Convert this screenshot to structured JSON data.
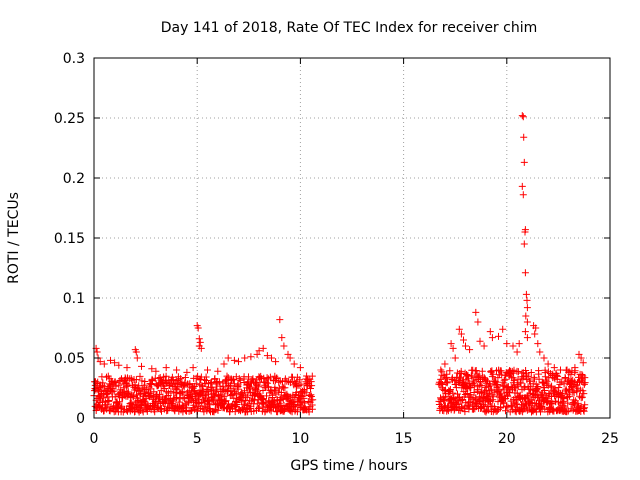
{
  "chart_data": {
    "type": "scatter",
    "title": "Day 141 of 2018, Rate Of TEC Index for receiver chim",
    "xlabel": "GPS time / hours",
    "ylabel": "ROTI / TECUs",
    "xlim": [
      0,
      25
    ],
    "ylim": [
      0,
      0.3
    ],
    "grid": true,
    "marker": "+",
    "series_color": "#ff0000",
    "xticks": [
      0,
      5,
      10,
      15,
      20,
      25
    ],
    "xtick_labels": [
      "0",
      "5",
      "10",
      "15",
      "20",
      "25"
    ],
    "yticks": [
      0,
      0.05,
      0.1,
      0.15,
      0.2,
      0.25,
      0.3
    ],
    "ytick_labels": [
      "0",
      "0.05",
      "0.1",
      "0.15",
      "0.2",
      "0.25",
      "0.3"
    ],
    "series": [
      {
        "name": "ROTI",
        "dense_segments": [
          {
            "x_start": 0.0,
            "x_end": 10.6,
            "y_base_min": 0.005,
            "y_base_max": 0.035,
            "count": 900
          },
          {
            "x_start": 16.7,
            "x_end": 23.8,
            "y_base_min": 0.005,
            "y_base_max": 0.04,
            "count": 650
          }
        ],
        "points": [
          [
            0.1,
            0.058
          ],
          [
            0.15,
            0.055
          ],
          [
            0.2,
            0.05
          ],
          [
            0.3,
            0.047
          ],
          [
            0.5,
            0.045
          ],
          [
            0.8,
            0.048
          ],
          [
            1.0,
            0.046
          ],
          [
            1.2,
            0.044
          ],
          [
            1.6,
            0.042
          ],
          [
            2.0,
            0.057
          ],
          [
            2.05,
            0.055
          ],
          [
            2.1,
            0.05
          ],
          [
            2.3,
            0.043
          ],
          [
            2.8,
            0.041
          ],
          [
            3.0,
            0.039
          ],
          [
            3.5,
            0.042
          ],
          [
            4.0,
            0.04
          ],
          [
            4.5,
            0.038
          ],
          [
            4.8,
            0.042
          ],
          [
            5.0,
            0.077
          ],
          [
            5.05,
            0.075
          ],
          [
            5.1,
            0.066
          ],
          [
            5.15,
            0.063
          ],
          [
            5.1,
            0.06
          ],
          [
            5.2,
            0.058
          ],
          [
            5.5,
            0.04
          ],
          [
            6.0,
            0.039
          ],
          [
            6.3,
            0.045
          ],
          [
            6.5,
            0.05
          ],
          [
            6.8,
            0.048
          ],
          [
            7.0,
            0.047
          ],
          [
            7.3,
            0.05
          ],
          [
            7.6,
            0.051
          ],
          [
            7.9,
            0.053
          ],
          [
            8.0,
            0.056
          ],
          [
            8.2,
            0.058
          ],
          [
            8.4,
            0.052
          ],
          [
            8.6,
            0.05
          ],
          [
            8.8,
            0.047
          ],
          [
            9.0,
            0.082
          ],
          [
            9.1,
            0.067
          ],
          [
            9.2,
            0.06
          ],
          [
            9.4,
            0.053
          ],
          [
            9.5,
            0.05
          ],
          [
            9.7,
            0.045
          ],
          [
            10.0,
            0.042
          ],
          [
            10.3,
            0.035
          ],
          [
            16.8,
            0.04
          ],
          [
            17.0,
            0.045
          ],
          [
            17.3,
            0.062
          ],
          [
            17.4,
            0.058
          ],
          [
            17.5,
            0.05
          ],
          [
            17.7,
            0.074
          ],
          [
            17.8,
            0.07
          ],
          [
            17.9,
            0.065
          ],
          [
            18.0,
            0.06
          ],
          [
            18.2,
            0.057
          ],
          [
            18.5,
            0.088
          ],
          [
            18.6,
            0.08
          ],
          [
            18.7,
            0.064
          ],
          [
            18.9,
            0.06
          ],
          [
            19.2,
            0.072
          ],
          [
            19.3,
            0.067
          ],
          [
            19.6,
            0.068
          ],
          [
            19.8,
            0.074
          ],
          [
            20.0,
            0.062
          ],
          [
            20.3,
            0.06
          ],
          [
            20.5,
            0.055
          ],
          [
            20.6,
            0.062
          ],
          [
            20.75,
            0.252
          ],
          [
            20.8,
            0.251
          ],
          [
            20.82,
            0.234
          ],
          [
            20.85,
            0.213
          ],
          [
            20.75,
            0.193
          ],
          [
            20.8,
            0.186
          ],
          [
            20.9,
            0.157
          ],
          [
            20.88,
            0.155
          ],
          [
            20.85,
            0.145
          ],
          [
            20.9,
            0.121
          ],
          [
            20.95,
            0.103
          ],
          [
            20.98,
            0.098
          ],
          [
            21.0,
            0.092
          ],
          [
            20.92,
            0.085
          ],
          [
            21.0,
            0.08
          ],
          [
            20.9,
            0.072
          ],
          [
            21.0,
            0.067
          ],
          [
            21.3,
            0.077
          ],
          [
            21.4,
            0.075
          ],
          [
            21.35,
            0.07
          ],
          [
            21.5,
            0.062
          ],
          [
            21.6,
            0.055
          ],
          [
            21.8,
            0.05
          ],
          [
            22.0,
            0.045
          ],
          [
            22.3,
            0.042
          ],
          [
            22.6,
            0.04
          ],
          [
            23.0,
            0.038
          ],
          [
            23.3,
            0.042
          ],
          [
            23.5,
            0.053
          ],
          [
            23.6,
            0.05
          ],
          [
            23.7,
            0.046
          ]
        ]
      }
    ]
  }
}
